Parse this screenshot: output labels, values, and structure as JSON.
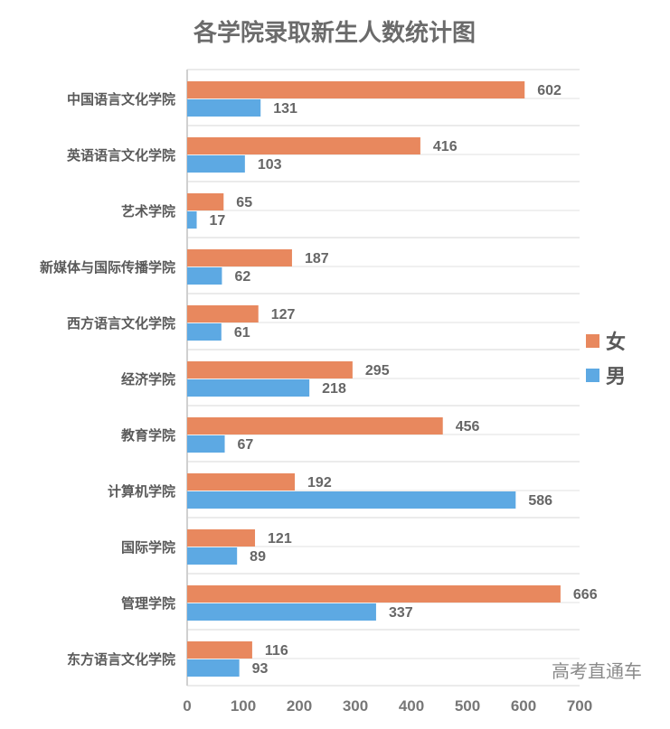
{
  "chart_data": {
    "type": "bar",
    "orientation": "horizontal",
    "title": "各学院录取新生人数统计图",
    "categories": [
      "中国语言文化学院",
      "英语语言文化学院",
      "艺术学院",
      "新媒体与国际传播学院",
      "西方语言文化学院",
      "经济学院",
      "教育学院",
      "计算机学院",
      "国际学院",
      "管理学院",
      "东方语言文化学院"
    ],
    "series": [
      {
        "name": "女",
        "color": "#E8885E",
        "values": [
          602,
          416,
          65,
          187,
          127,
          295,
          456,
          192,
          121,
          666,
          116
        ]
      },
      {
        "name": "男",
        "color": "#5DA9E3",
        "values": [
          131,
          103,
          17,
          62,
          61,
          218,
          67,
          586,
          89,
          337,
          93
        ]
      }
    ],
    "xlim": [
      0,
      700
    ],
    "xticks": [
      0,
      100,
      200,
      300,
      400,
      500,
      600,
      700
    ],
    "grid": true,
    "legend": "right",
    "data_labels": true
  },
  "watermark": "高考直通车"
}
